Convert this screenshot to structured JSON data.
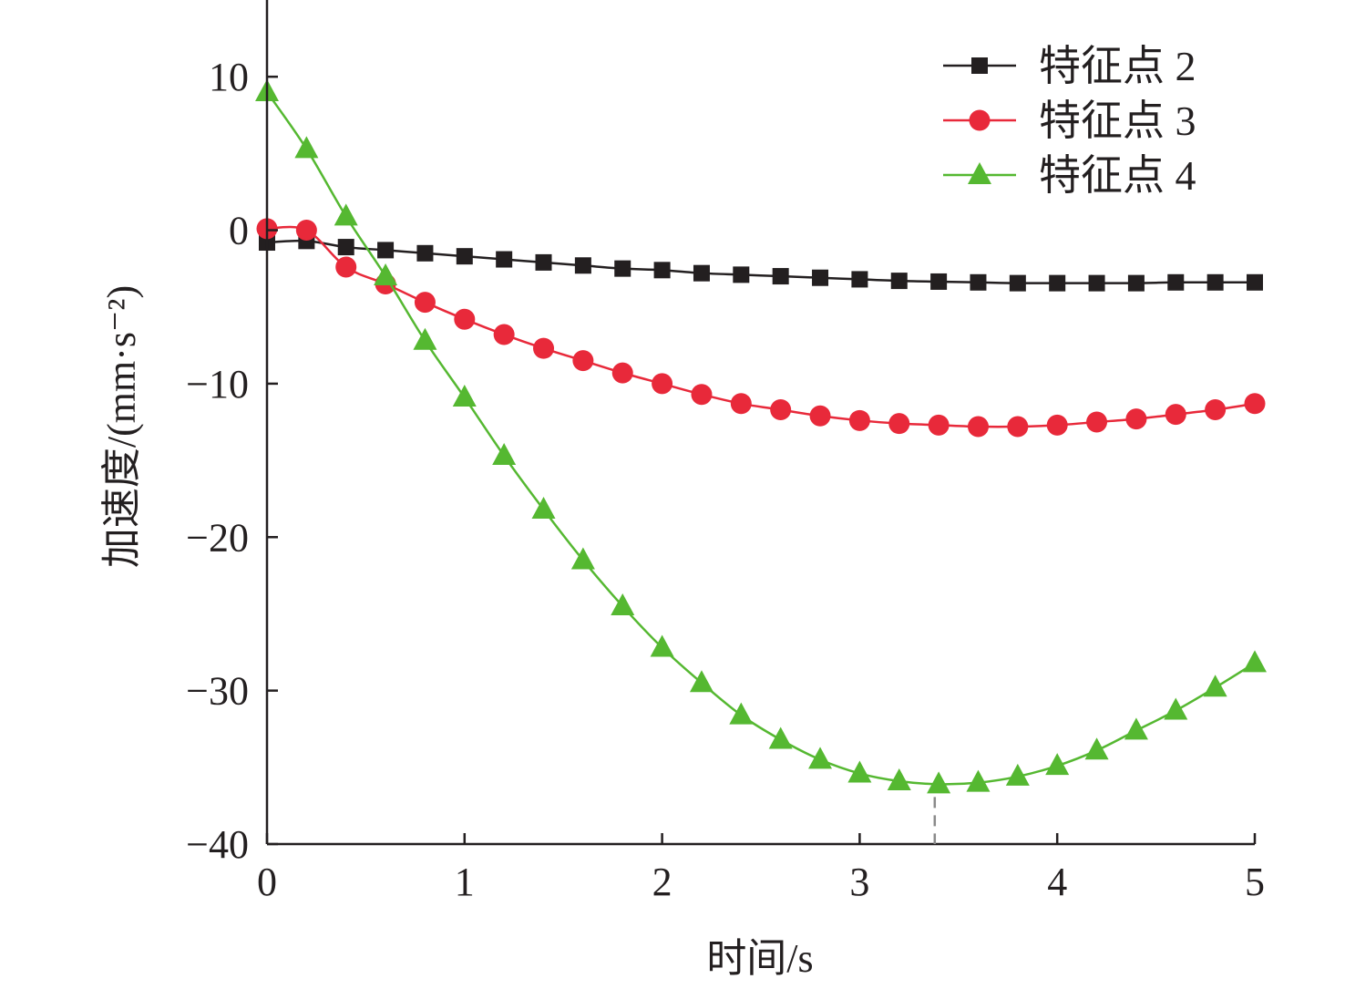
{
  "chart_data": {
    "type": "line",
    "xlabel": "时间/s",
    "ylabel": "加速度/(mm·s⁻²)",
    "xlim": [
      0,
      5
    ],
    "ylim": [
      -40,
      15
    ],
    "x_ticks": [
      "0",
      "1",
      "2",
      "3",
      "4",
      "5"
    ],
    "y_ticks": [
      "10",
      "0",
      "−10",
      "−20",
      "−30",
      "−40"
    ],
    "grid": false,
    "legend_position": "top-right",
    "x": [
      0,
      0.2,
      0.4,
      0.6,
      0.8,
      1.0,
      1.2,
      1.4,
      1.6,
      1.8,
      2.0,
      2.2,
      2.4,
      2.6,
      2.8,
      3.0,
      3.2,
      3.4,
      3.6,
      3.8,
      4.0,
      4.2,
      4.4,
      4.6,
      4.8,
      5.0
    ],
    "series": [
      {
        "name": "特征点 2",
        "color": "#231f20",
        "marker": "square",
        "values": [
          -0.8,
          -0.7,
          -1.1,
          -1.3,
          -1.5,
          -1.7,
          -1.9,
          -2.1,
          -2.3,
          -2.5,
          -2.6,
          -2.8,
          -2.9,
          -3.0,
          -3.1,
          -3.2,
          -3.3,
          -3.35,
          -3.4,
          -3.45,
          -3.45,
          -3.45,
          -3.45,
          -3.4,
          -3.4,
          -3.4
        ]
      },
      {
        "name": "特征点 3",
        "color": "#e8293a",
        "marker": "circle",
        "values": [
          0.1,
          0.0,
          -2.4,
          -3.5,
          -4.7,
          -5.8,
          -6.8,
          -7.7,
          -8.5,
          -9.3,
          -10.0,
          -10.7,
          -11.3,
          -11.7,
          -12.1,
          -12.4,
          -12.6,
          -12.7,
          -12.8,
          -12.8,
          -12.7,
          -12.5,
          -12.3,
          -12.0,
          -11.7,
          -11.3
        ]
      },
      {
        "name": "特征点 4",
        "color": "#55b831",
        "marker": "triangle",
        "values": [
          9.0,
          5.3,
          0.9,
          -3.0,
          -7.2,
          -10.9,
          -14.7,
          -18.2,
          -21.5,
          -24.5,
          -27.2,
          -29.5,
          -31.6,
          -33.2,
          -34.5,
          -35.4,
          -35.9,
          -36.1,
          -36.0,
          -35.6,
          -34.9,
          -33.9,
          -32.6,
          -31.3,
          -29.8,
          -28.2
        ]
      }
    ],
    "annotations": [
      {
        "type": "dashed-vertical-marker",
        "x": 3.38,
        "y_from": -36.1,
        "y_to": -40,
        "color": "#8a8a8a"
      }
    ]
  }
}
